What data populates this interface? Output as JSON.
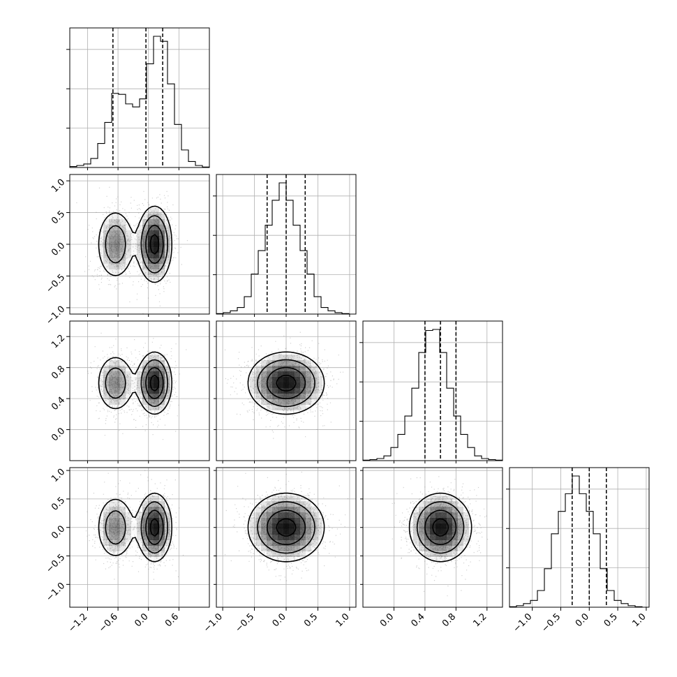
{
  "chart_data": {
    "type": "corner",
    "n_params": 4,
    "histogram_bins": 20,
    "quantiles": [
      0.16,
      0.5,
      0.84
    ],
    "grid": true,
    "ranges": [
      [
        -1.55,
        1.2
      ],
      [
        -1.1,
        1.1
      ],
      [
        -0.4,
        1.4
      ],
      [
        -1.4,
        1.05
      ]
    ],
    "ticks": [
      [
        -1.2,
        -0.6,
        0.0,
        0.6
      ],
      [
        -1.0,
        -0.5,
        0.0,
        0.5,
        1.0
      ],
      [
        0.0,
        0.4,
        0.8,
        1.2
      ],
      [
        -1.0,
        -0.5,
        0.0,
        0.5,
        1.0
      ]
    ],
    "tick_labels": [
      [
        "−1.2",
        "−0.6",
        "0.0",
        "0.6"
      ],
      [
        "−1.0",
        "−0.5",
        "0.0",
        "0.5",
        "1.0"
      ],
      [
        "0.0",
        "0.4",
        "0.8",
        "1.2"
      ],
      [
        "−1.0",
        "−0.5",
        "0.0",
        "0.5",
        "1.0"
      ]
    ],
    "marginals": [
      {
        "param": 0,
        "quantile_values": [
          -0.7,
          -0.05,
          0.28
        ],
        "bin_counts": [
          2,
          4,
          7,
          18,
          48,
          90,
          148,
          146,
          127,
          121,
          137,
          207,
          262,
          252,
          167,
          86,
          35,
          12,
          4,
          1
        ]
      },
      {
        "param": 1,
        "quantile_values": [
          -0.3,
          0.0,
          0.3
        ],
        "bin_counts": [
          1,
          3,
          7,
          14,
          37,
          85,
          135,
          189,
          242,
          279,
          242,
          189,
          135,
          85,
          37,
          14,
          7,
          3,
          1,
          0
        ]
      },
      {
        "param": 2,
        "quantile_values": [
          0.4,
          0.6,
          0.8
        ],
        "bin_counts": [
          1,
          2,
          4,
          9,
          25,
          50,
          85,
          138,
          206,
          248,
          250,
          206,
          138,
          85,
          50,
          25,
          9,
          4,
          2,
          1
        ]
      },
      {
        "param": 3,
        "quantile_values": [
          -0.3,
          0.0,
          0.3
        ],
        "bin_counts": [
          1,
          3,
          7,
          13,
          32,
          74,
          141,
          184,
          218,
          252,
          218,
          184,
          141,
          74,
          32,
          13,
          7,
          3,
          1,
          0
        ]
      }
    ],
    "joint_distribution": {
      "param0_components": [
        {
          "weight": 0.38,
          "mean": -0.65,
          "std": 0.2
        },
        {
          "weight": 0.62,
          "mean": 0.12,
          "std": 0.17
        }
      ],
      "param1": {
        "mean": 0.0,
        "std": 0.3
      },
      "param2": {
        "mean": 0.6,
        "std": 0.2
      },
      "param3": {
        "mean": 0.0,
        "std": 0.3
      },
      "correlated": false
    },
    "contour_levels_sigma": [
      0.5,
      1.0,
      1.5,
      2.0
    ],
    "colors": {
      "line": "#000000",
      "grid": "#b0b0b0",
      "points": "#777777",
      "background": "#ffffff"
    }
  }
}
